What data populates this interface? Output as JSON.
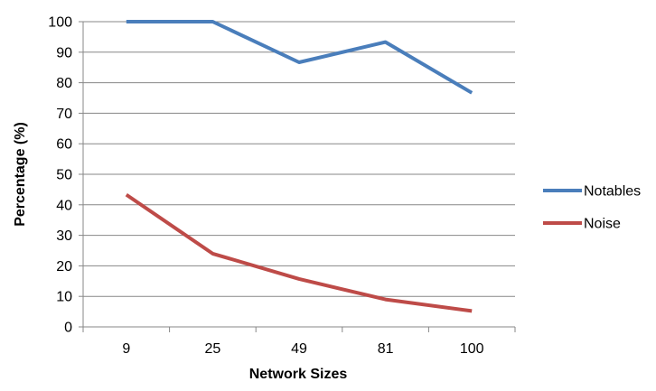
{
  "chart_data": {
    "type": "line",
    "title": "",
    "xlabel": "Network Sizes",
    "ylabel": "Percentage (%)",
    "categories": [
      "9",
      "25",
      "49",
      "81",
      "100"
    ],
    "ylim": [
      0,
      100
    ],
    "yticks": [
      0,
      10,
      20,
      30,
      40,
      50,
      60,
      70,
      80,
      90,
      100
    ],
    "grid": "horizontal",
    "legend_position": "right",
    "series": [
      {
        "name": "Notables",
        "color": "#4a7ebb",
        "values": [
          100,
          100,
          86.7,
          93.3,
          76.7
        ]
      },
      {
        "name": "Noise",
        "color": "#be4b48",
        "values": [
          43.3,
          24,
          15.7,
          9,
          5.2
        ]
      }
    ]
  }
}
